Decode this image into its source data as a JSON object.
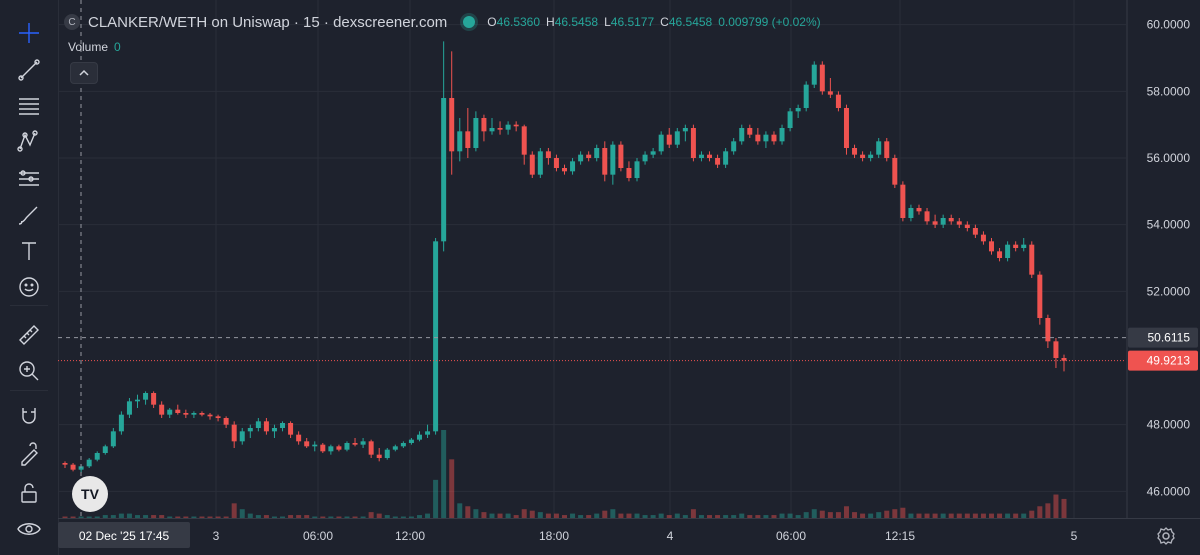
{
  "header": {
    "symbol_badge": "C",
    "title": "CLANKER/WETH on Uniswap · 15 · dexscreener.com",
    "ohlc": [
      {
        "key": "O",
        "value": "46.5360"
      },
      {
        "key": "H",
        "value": "46.5458"
      },
      {
        "key": "L",
        "value": "46.5177"
      },
      {
        "key": "C",
        "value": "46.5458"
      }
    ],
    "change": "0.009799 (+0.02%)"
  },
  "volume_legend": {
    "label": "Volume",
    "value": "0"
  },
  "toolbar": {
    "items": [
      {
        "name": "crosshair-icon",
        "active": true
      },
      {
        "name": "trend-line-icon"
      },
      {
        "name": "fib-lines-icon"
      },
      {
        "name": "pattern-icon"
      },
      {
        "name": "prediction-icon"
      },
      {
        "name": "brush-icon"
      },
      {
        "name": "text-icon"
      },
      {
        "name": "emoji-icon"
      },
      {
        "name": "ruler-icon"
      },
      {
        "name": "zoom-in-icon"
      },
      {
        "name": "magnet-icon"
      },
      {
        "name": "lock-pencil-icon"
      },
      {
        "name": "lock-icon"
      },
      {
        "name": "eye-icon"
      }
    ]
  },
  "colors": {
    "up": "#26a69a",
    "down": "#ef5350",
    "background": "#1e222d",
    "grid": "#2a2e39",
    "axis_text": "#d1d4dc"
  },
  "chart_data": {
    "type": "candlestick",
    "price_axis": {
      "labels": [
        "60.0000",
        "58.0000",
        "56.0000",
        "54.0000",
        "52.0000",
        "48.0000",
        "46.0000"
      ],
      "ylim": [
        45.2,
        60.5
      ]
    },
    "time_axis": {
      "ticks": [
        "3",
        "06:00",
        "12:00",
        "18:00",
        "4",
        "06:00",
        "12:15",
        "5"
      ],
      "crosshair_label": "02 Dec '25   17:45"
    },
    "markers": [
      {
        "label": "50.6115",
        "kind": "crosshair"
      },
      {
        "label": "49.9213",
        "kind": "last-price"
      }
    ],
    "candles": [
      [
        46.85,
        46.9,
        46.7,
        46.8
      ],
      [
        46.8,
        46.85,
        46.6,
        46.65
      ],
      [
        46.65,
        46.8,
        46.55,
        46.75
      ],
      [
        46.75,
        47.0,
        46.7,
        46.95
      ],
      [
        46.95,
        47.2,
        46.9,
        47.15
      ],
      [
        47.15,
        47.4,
        47.1,
        47.35
      ],
      [
        47.35,
        47.9,
        47.3,
        47.8
      ],
      [
        47.8,
        48.4,
        47.7,
        48.3
      ],
      [
        48.3,
        48.8,
        48.2,
        48.7
      ],
      [
        48.7,
        48.9,
        48.5,
        48.75
      ],
      [
        48.75,
        49.0,
        48.6,
        48.95
      ],
      [
        48.95,
        49.0,
        48.5,
        48.6
      ],
      [
        48.6,
        48.7,
        48.2,
        48.3
      ],
      [
        48.3,
        48.5,
        48.2,
        48.45
      ],
      [
        48.45,
        48.6,
        48.3,
        48.35
      ],
      [
        48.35,
        48.45,
        48.2,
        48.3
      ],
      [
        48.3,
        48.4,
        48.2,
        48.35
      ],
      [
        48.35,
        48.4,
        48.25,
        48.3
      ],
      [
        48.3,
        48.35,
        48.15,
        48.25
      ],
      [
        48.25,
        48.3,
        48.1,
        48.2
      ],
      [
        48.2,
        48.25,
        47.9,
        48.0
      ],
      [
        48.0,
        48.1,
        47.3,
        47.5
      ],
      [
        47.5,
        47.9,
        47.4,
        47.8
      ],
      [
        47.8,
        48.0,
        47.6,
        47.9
      ],
      [
        47.9,
        48.2,
        47.8,
        48.1
      ],
      [
        48.1,
        48.2,
        47.7,
        47.8
      ],
      [
        47.8,
        48.0,
        47.6,
        47.9
      ],
      [
        47.9,
        48.1,
        47.8,
        48.05
      ],
      [
        48.05,
        48.1,
        47.6,
        47.7
      ],
      [
        47.7,
        47.8,
        47.4,
        47.5
      ],
      [
        47.5,
        47.6,
        47.3,
        47.35
      ],
      [
        47.35,
        47.5,
        47.2,
        47.4
      ],
      [
        47.4,
        47.45,
        47.15,
        47.2
      ],
      [
        47.2,
        47.4,
        47.1,
        47.35
      ],
      [
        47.35,
        47.4,
        47.2,
        47.25
      ],
      [
        47.25,
        47.5,
        47.2,
        47.45
      ],
      [
        47.45,
        47.6,
        47.35,
        47.4
      ],
      [
        47.4,
        47.6,
        47.3,
        47.5
      ],
      [
        47.5,
        47.55,
        47.0,
        47.1
      ],
      [
        47.1,
        47.3,
        46.9,
        47.0
      ],
      [
        47.0,
        47.3,
        46.95,
        47.25
      ],
      [
        47.25,
        47.4,
        47.2,
        47.35
      ],
      [
        47.35,
        47.5,
        47.3,
        47.45
      ],
      [
        47.45,
        47.6,
        47.4,
        47.55
      ],
      [
        47.55,
        47.8,
        47.5,
        47.7
      ],
      [
        47.7,
        48.0,
        47.6,
        47.8
      ],
      [
        47.8,
        53.6,
        47.7,
        53.5
      ],
      [
        53.5,
        59.5,
        53.2,
        57.8
      ],
      [
        57.8,
        59.2,
        55.5,
        56.2
      ],
      [
        56.2,
        57.2,
        55.9,
        56.8
      ],
      [
        56.8,
        57.5,
        56.0,
        56.3
      ],
      [
        56.3,
        57.4,
        56.2,
        57.2
      ],
      [
        57.2,
        57.3,
        56.5,
        56.8
      ],
      [
        56.8,
        57.2,
        56.7,
        56.9
      ],
      [
        56.9,
        57.1,
        56.7,
        56.85
      ],
      [
        56.85,
        57.1,
        56.7,
        57.0
      ],
      [
        57.0,
        57.1,
        56.8,
        56.95
      ],
      [
        56.95,
        57.0,
        55.8,
        56.1
      ],
      [
        56.1,
        56.2,
        55.4,
        55.5
      ],
      [
        55.5,
        56.3,
        55.4,
        56.2
      ],
      [
        56.2,
        56.3,
        55.8,
        56.0
      ],
      [
        56.0,
        56.1,
        55.6,
        55.7
      ],
      [
        55.7,
        55.8,
        55.5,
        55.6
      ],
      [
        55.6,
        56.0,
        55.5,
        55.9
      ],
      [
        55.9,
        56.2,
        55.8,
        56.1
      ],
      [
        56.1,
        56.2,
        55.9,
        56.0
      ],
      [
        56.0,
        56.4,
        55.9,
        56.3
      ],
      [
        56.3,
        56.5,
        55.3,
        55.5
      ],
      [
        55.5,
        56.5,
        55.2,
        56.4
      ],
      [
        56.4,
        56.5,
        55.6,
        55.7
      ],
      [
        55.7,
        55.9,
        55.3,
        55.4
      ],
      [
        55.4,
        56.0,
        55.3,
        55.9
      ],
      [
        55.9,
        56.2,
        55.8,
        56.1
      ],
      [
        56.1,
        56.3,
        56.0,
        56.2
      ],
      [
        56.2,
        56.8,
        56.1,
        56.7
      ],
      [
        56.7,
        56.9,
        56.3,
        56.4
      ],
      [
        56.4,
        56.9,
        56.3,
        56.8
      ],
      [
        56.8,
        57.0,
        56.5,
        56.9
      ],
      [
        56.9,
        57.0,
        55.9,
        56.0
      ],
      [
        56.0,
        56.2,
        55.9,
        56.1
      ],
      [
        56.1,
        56.2,
        55.9,
        56.0
      ],
      [
        56.0,
        56.1,
        55.7,
        55.8
      ],
      [
        55.8,
        56.3,
        55.7,
        56.2
      ],
      [
        56.2,
        56.6,
        56.1,
        56.5
      ],
      [
        56.5,
        57.0,
        56.4,
        56.9
      ],
      [
        56.9,
        57.0,
        56.6,
        56.7
      ],
      [
        56.7,
        56.9,
        56.4,
        56.5
      ],
      [
        56.5,
        56.8,
        56.3,
        56.7
      ],
      [
        56.7,
        56.8,
        56.4,
        56.5
      ],
      [
        56.5,
        57.0,
        56.4,
        56.9
      ],
      [
        56.9,
        57.5,
        56.8,
        57.4
      ],
      [
        57.4,
        57.6,
        57.2,
        57.5
      ],
      [
        57.5,
        58.3,
        57.4,
        58.2
      ],
      [
        58.2,
        58.9,
        58.1,
        58.8
      ],
      [
        58.8,
        58.9,
        57.9,
        58.0
      ],
      [
        58.0,
        58.4,
        57.8,
        57.9
      ],
      [
        57.9,
        58.0,
        57.4,
        57.5
      ],
      [
        57.5,
        57.6,
        56.1,
        56.3
      ],
      [
        56.3,
        56.4,
        56.0,
        56.1
      ],
      [
        56.1,
        56.2,
        55.9,
        56.0
      ],
      [
        56.0,
        56.2,
        55.9,
        56.1
      ],
      [
        56.1,
        56.6,
        56.0,
        56.5
      ],
      [
        56.5,
        56.6,
        55.9,
        56.0
      ],
      [
        56.0,
        56.1,
        55.1,
        55.2
      ],
      [
        55.2,
        55.3,
        54.1,
        54.2
      ],
      [
        54.2,
        54.6,
        54.1,
        54.5
      ],
      [
        54.5,
        54.6,
        54.3,
        54.4
      ],
      [
        54.4,
        54.5,
        54.0,
        54.1
      ],
      [
        54.1,
        54.3,
        53.9,
        54.0
      ],
      [
        54.0,
        54.3,
        53.9,
        54.2
      ],
      [
        54.2,
        54.3,
        54.0,
        54.1
      ],
      [
        54.1,
        54.2,
        53.9,
        54.0
      ],
      [
        54.0,
        54.1,
        53.8,
        53.9
      ],
      [
        53.9,
        54.0,
        53.6,
        53.7
      ],
      [
        53.7,
        53.8,
        53.4,
        53.5
      ],
      [
        53.5,
        53.6,
        53.1,
        53.2
      ],
      [
        53.2,
        53.3,
        52.9,
        53.0
      ],
      [
        53.0,
        53.5,
        52.9,
        53.4
      ],
      [
        53.4,
        53.5,
        53.2,
        53.3
      ],
      [
        53.3,
        53.6,
        53.2,
        53.4
      ],
      [
        53.4,
        53.5,
        52.4,
        52.5
      ],
      [
        52.5,
        52.6,
        51.0,
        51.2
      ],
      [
        51.2,
        51.3,
        50.3,
        50.5
      ],
      [
        50.5,
        50.6,
        49.7,
        50.0
      ],
      [
        50.0,
        50.1,
        49.6,
        49.92
      ]
    ],
    "volumes": [
      0.1,
      0.1,
      0.1,
      0.1,
      0.1,
      0.2,
      0.2,
      0.3,
      0.3,
      0.2,
      0.2,
      0.2,
      0.2,
      0.1,
      0.1,
      0.1,
      0.1,
      0.1,
      0.1,
      0.1,
      0.1,
      1.0,
      0.6,
      0.3,
      0.2,
      0.2,
      0.1,
      0.1,
      0.2,
      0.2,
      0.2,
      0.1,
      0.1,
      0.1,
      0.1,
      0.1,
      0.1,
      0.1,
      0.4,
      0.3,
      0.2,
      0.1,
      0.1,
      0.1,
      0.2,
      0.3,
      2.6,
      6.0,
      4.0,
      1.0,
      0.8,
      0.6,
      0.4,
      0.3,
      0.3,
      0.3,
      0.2,
      0.6,
      0.5,
      0.4,
      0.3,
      0.3,
      0.2,
      0.3,
      0.2,
      0.2,
      0.3,
      0.5,
      0.6,
      0.3,
      0.3,
      0.3,
      0.2,
      0.2,
      0.3,
      0.2,
      0.3,
      0.2,
      0.6,
      0.2,
      0.2,
      0.2,
      0.2,
      0.2,
      0.3,
      0.2,
      0.2,
      0.2,
      0.2,
      0.3,
      0.3,
      0.2,
      0.4,
      0.6,
      0.5,
      0.4,
      0.4,
      0.8,
      0.4,
      0.3,
      0.3,
      0.4,
      0.5,
      0.6,
      0.7,
      0.3,
      0.3,
      0.3,
      0.3,
      0.3,
      0.3,
      0.3,
      0.3,
      0.3,
      0.3,
      0.3,
      0.3,
      0.3,
      0.3,
      0.3,
      0.5,
      0.8,
      1.0,
      1.6,
      1.3
    ]
  }
}
